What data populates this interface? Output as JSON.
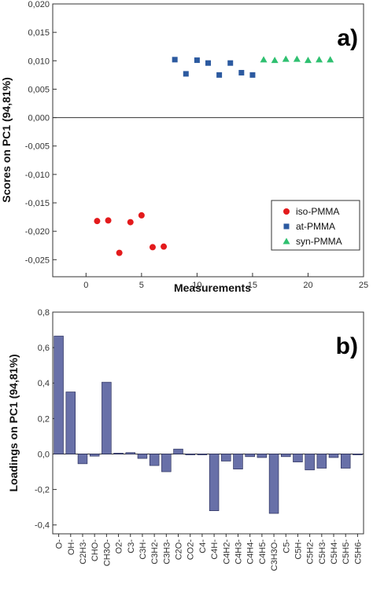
{
  "colors": {
    "iso": "#e31a1c",
    "at": "#2c5aa0",
    "syn": "#2fc070",
    "bar": "#6870a8",
    "bar_edge": "#1e2350"
  },
  "chart_data": [
    {
      "type": "scatter",
      "panel_label": "a)",
      "xlabel": "Measurements",
      "ylabel": "Scores on PC1 (94,81%)",
      "xlim": [
        -3,
        25
      ],
      "ylim": [
        -0.028,
        0.02
      ],
      "xticks": [
        "0",
        "5",
        "10",
        "15",
        "20",
        "25"
      ],
      "xtick_values": [
        0,
        5,
        10,
        15,
        20,
        25
      ],
      "yticks": [
        "-0,025",
        "-0,020",
        "-0,015",
        "-0,010",
        "-0,005",
        "0,000",
        "0,005",
        "0,010",
        "0,015",
        "0,020"
      ],
      "ytick_values": [
        -0.025,
        -0.02,
        -0.015,
        -0.01,
        -0.005,
        0.0,
        0.005,
        0.01,
        0.015,
        0.02
      ],
      "zero_line": true,
      "legend_position": "bottom-right",
      "series": [
        {
          "name": "iso-PMMA",
          "marker": "circle",
          "x": [
            1,
            2,
            3,
            4,
            5,
            6,
            7
          ],
          "y": [
            -0.0182,
            -0.0181,
            -0.0238,
            -0.0184,
            -0.0172,
            -0.0228,
            -0.0227
          ]
        },
        {
          "name": "at-PMMA",
          "marker": "square",
          "x": [
            8,
            9,
            10,
            11,
            12,
            13,
            14,
            15
          ],
          "y": [
            0.0102,
            0.0077,
            0.0101,
            0.0096,
            0.0075,
            0.0096,
            0.0079,
            0.0075
          ]
        },
        {
          "name": "syn-PMMA",
          "marker": "triangle",
          "x": [
            16,
            17,
            18,
            19,
            20,
            21,
            22
          ],
          "y": [
            0.0102,
            0.0101,
            0.0103,
            0.0103,
            0.0101,
            0.0102,
            0.0102
          ]
        }
      ]
    },
    {
      "type": "bar",
      "panel_label": "b)",
      "xlabel": "",
      "ylabel": "Loadings on PC1 (94,81%)",
      "ylim": [
        -0.45,
        0.8
      ],
      "yticks": [
        "-0,4",
        "-0,2",
        "0,0",
        "0,2",
        "0,4",
        "0,6",
        "0,8"
      ],
      "ytick_values": [
        -0.4,
        -0.2,
        0.0,
        0.2,
        0.4,
        0.6,
        0.8
      ],
      "categories": [
        "O-",
        "OH-",
        "C2H3-",
        "CHO-",
        "CH3O-",
        "O2-",
        "C3-",
        "C3H-",
        "C3H2-",
        "C3H3-",
        "C2O-",
        "CO2-",
        "C4-",
        "C4H-",
        "C4H2-",
        "C4H3-",
        "C4H4-",
        "C4H5-",
        "C3H3O-",
        "C5-",
        "C5H-",
        "C5H2-",
        "C5H3-",
        "C5H4-",
        "C5H5-",
        "C5H6-"
      ],
      "values": [
        0.665,
        0.35,
        -0.055,
        -0.012,
        0.405,
        0.005,
        0.008,
        -0.025,
        -0.065,
        -0.1,
        0.028,
        -0.005,
        -0.005,
        -0.32,
        -0.04,
        -0.085,
        -0.015,
        -0.02,
        -0.335,
        -0.015,
        -0.045,
        -0.09,
        -0.08,
        -0.02,
        -0.08,
        -0.005
      ]
    }
  ]
}
